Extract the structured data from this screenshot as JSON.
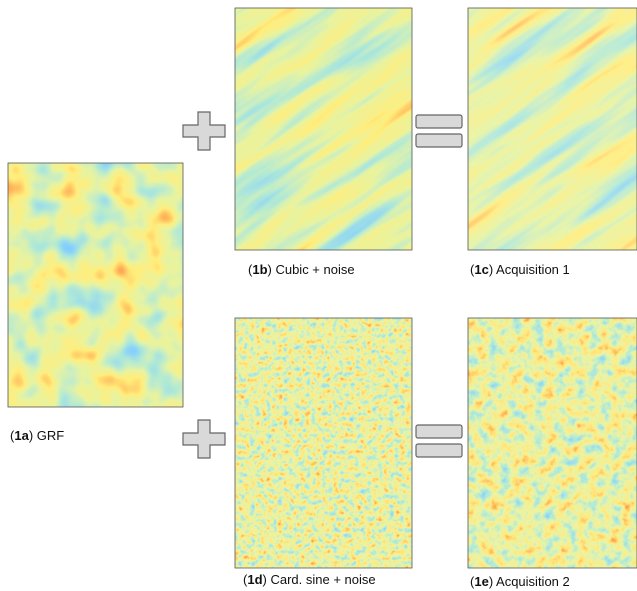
{
  "panels": [
    {
      "prefix": "(",
      "label": "1a",
      "suffix": ") GRF"
    },
    {
      "prefix": "(",
      "label": "1b",
      "suffix": ") Cubic + noise"
    },
    {
      "prefix": "(",
      "label": "1c",
      "suffix": ") Acquisition 1"
    },
    {
      "prefix": "(",
      "label": "1d",
      "suffix": ") Card. sine + noise"
    },
    {
      "prefix": "(",
      "label": "1e",
      "suffix": ") Acquisition 2"
    }
  ]
}
